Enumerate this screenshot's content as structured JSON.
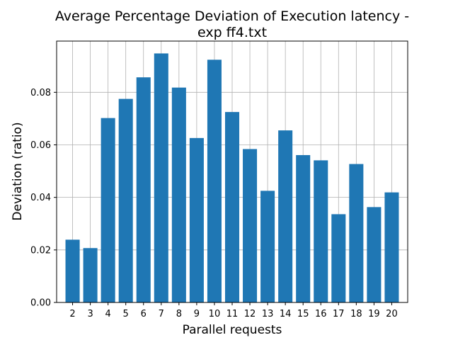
{
  "chart_data": {
    "type": "bar",
    "title_lines": [
      "Average Percentage Deviation of Execution latency -",
      "exp ff4.txt"
    ],
    "xlabel": "Parallel requests",
    "ylabel": "Deviation (ratio)",
    "categories": [
      "2",
      "3",
      "4",
      "5",
      "6",
      "7",
      "8",
      "9",
      "10",
      "11",
      "12",
      "13",
      "14",
      "15",
      "16",
      "17",
      "18",
      "19",
      "20"
    ],
    "values": [
      0.0239,
      0.0207,
      0.0702,
      0.0775,
      0.0857,
      0.0948,
      0.0818,
      0.0626,
      0.0924,
      0.0725,
      0.0584,
      0.0425,
      0.0655,
      0.0561,
      0.0541,
      0.0336,
      0.0527,
      0.0363,
      0.0419
    ],
    "ylim": [
      0,
      0.0995
    ],
    "yticks": [
      0.0,
      0.02,
      0.04,
      0.06,
      0.08
    ],
    "ytick_labels": [
      "0.00",
      "0.02",
      "0.04",
      "0.06",
      "0.08"
    ],
    "grid": true,
    "colors": {
      "bar": "#1f77b4",
      "grid": "#b0b0b0",
      "axes": "#000000"
    }
  }
}
